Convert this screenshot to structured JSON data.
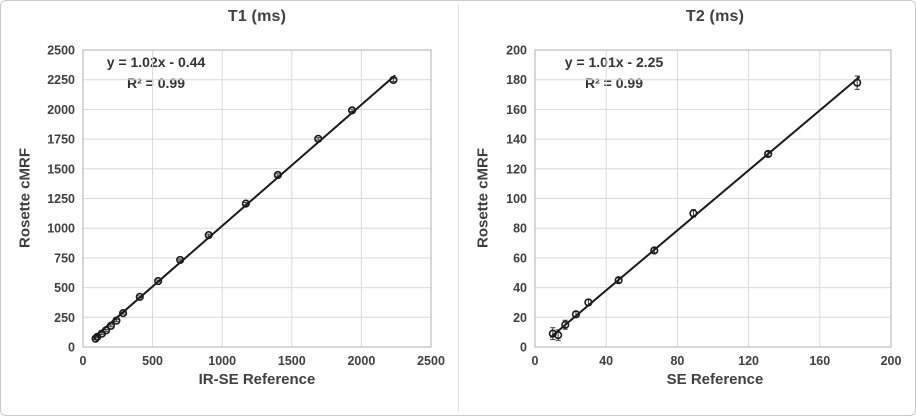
{
  "figure": {
    "background": "#ffffff",
    "border_color": "#c9c9c9",
    "grid_color": "#d9d9d9",
    "plot_border_color": "#bfbfbf",
    "line_color": "#1a1a1a",
    "marker_color": "#1a1a1a",
    "text_color": "#404040"
  },
  "chart_data": [
    {
      "type": "scatter",
      "title": "T1 (ms)",
      "xlabel": "IR-SE Reference",
      "ylabel": "Rosette cMRF",
      "annotation": {
        "line1": "y = 1.02x - 0.44",
        "line2": "R² = 0.99"
      },
      "legend": "none",
      "grid": true,
      "xlim": [
        0,
        2500
      ],
      "ylim": [
        0,
        2500
      ],
      "x_ticks": [
        0,
        500,
        1000,
        1500,
        2000,
        2500
      ],
      "y_ticks": [
        0,
        250,
        500,
        750,
        1000,
        1250,
        1500,
        1750,
        2000,
        2250,
        2500
      ],
      "fit": {
        "slope": 1.02,
        "intercept": -0.44,
        "x_start": 85,
        "x_end": 2238
      },
      "points": [
        {
          "x": 90,
          "y": 70,
          "err": 8
        },
        {
          "x": 102,
          "y": 85,
          "err": 8
        },
        {
          "x": 135,
          "y": 112,
          "err": 8
        },
        {
          "x": 165,
          "y": 140,
          "err": 8
        },
        {
          "x": 200,
          "y": 178,
          "err": 8
        },
        {
          "x": 240,
          "y": 222,
          "err": 8
        },
        {
          "x": 288,
          "y": 285,
          "err": 8
        },
        {
          "x": 408,
          "y": 422,
          "err": 8
        },
        {
          "x": 540,
          "y": 555,
          "err": 8
        },
        {
          "x": 698,
          "y": 733,
          "err": 8
        },
        {
          "x": 903,
          "y": 942,
          "err": 8
        },
        {
          "x": 1170,
          "y": 1207,
          "err": 10
        },
        {
          "x": 1400,
          "y": 1448,
          "err": 10
        },
        {
          "x": 1690,
          "y": 1752,
          "err": 10
        },
        {
          "x": 1933,
          "y": 1992,
          "err": 10
        },
        {
          "x": 2230,
          "y": 2248,
          "err": 14
        }
      ]
    },
    {
      "type": "scatter",
      "title": "T2 (ms)",
      "xlabel": "SE Reference",
      "ylabel": "Rosette cMRF",
      "annotation": {
        "line1": "y = 1.01x - 2.25",
        "line2": "R² = 0.99"
      },
      "legend": "none",
      "grid": true,
      "xlim": [
        0,
        200
      ],
      "ylim": [
        0,
        200
      ],
      "x_ticks": [
        0,
        40,
        80,
        120,
        160,
        200
      ],
      "y_ticks": [
        0,
        20,
        40,
        60,
        80,
        100,
        120,
        140,
        160,
        180,
        200
      ],
      "fit": {
        "slope": 1.01,
        "intercept": -2.25,
        "x_start": 9,
        "x_end": 182
      },
      "points": [
        {
          "x": 10,
          "y": 9,
          "err": 4
        },
        {
          "x": 13,
          "y": 8,
          "err": 3.5
        },
        {
          "x": 17,
          "y": 15,
          "err": 3
        },
        {
          "x": 23,
          "y": 22,
          "err": 2
        },
        {
          "x": 30,
          "y": 30,
          "err": 2
        },
        {
          "x": 47,
          "y": 45,
          "err": 1.5
        },
        {
          "x": 67,
          "y": 65,
          "err": 1.5
        },
        {
          "x": 89,
          "y": 90,
          "err": 2.5
        },
        {
          "x": 131,
          "y": 130,
          "err": 1.5
        },
        {
          "x": 181,
          "y": 178,
          "err": 4.5
        }
      ]
    }
  ]
}
